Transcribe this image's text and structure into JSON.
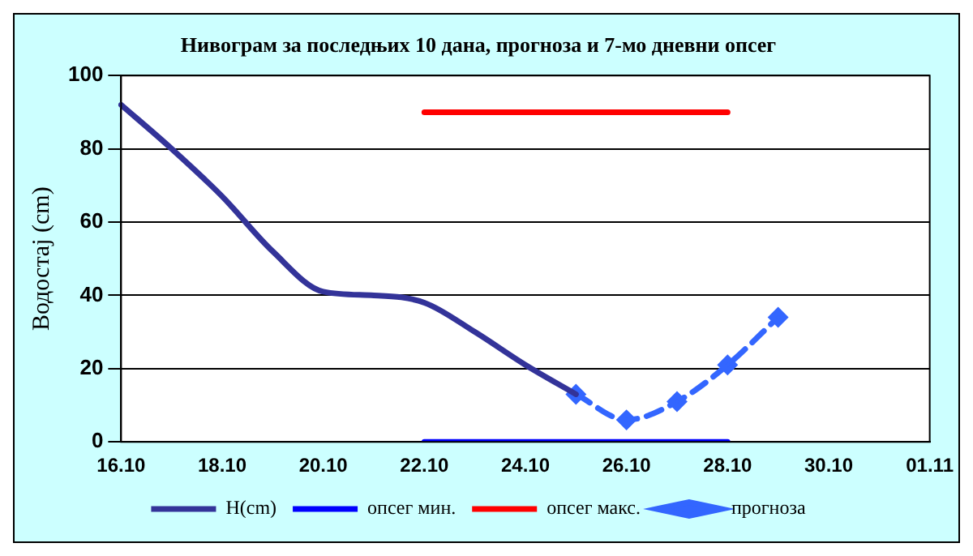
{
  "chart_data": {
    "type": "line",
    "title": "Нивограм за последњих 10 дана, прогноза и 7-мо дневни опсег",
    "ylabel": "Водостај (cm)",
    "categories": [
      "16.10",
      null,
      "18.10",
      null,
      "20.10",
      null,
      "22.10",
      null,
      "24.10",
      null,
      "26.10",
      null,
      "28.10",
      null,
      "30.10",
      null,
      "01.11"
    ],
    "series": [
      {
        "name": "H(cm)",
        "color": "#333399",
        "line_style": "solid",
        "marker": "none",
        "values": [
          92,
          80,
          67,
          52,
          41,
          40,
          38,
          30,
          21,
          13,
          null,
          null,
          null,
          null,
          null,
          null,
          null
        ]
      },
      {
        "name": "опсег мин.",
        "color": "#0000ff",
        "line_style": "solid",
        "marker": "none",
        "values": [
          null,
          null,
          null,
          null,
          null,
          null,
          0,
          0,
          0,
          0,
          0,
          0,
          0,
          null,
          null,
          null,
          null
        ]
      },
      {
        "name": "опсег макс.",
        "color": "#ff0000",
        "line_style": "solid",
        "marker": "none",
        "values": [
          null,
          null,
          null,
          null,
          null,
          null,
          90,
          90,
          90,
          90,
          90,
          90,
          90,
          null,
          null,
          null,
          null
        ]
      },
      {
        "name": "прогноза",
        "color": "#3366ff",
        "line_style": "dashed",
        "marker": "diamond",
        "values": [
          null,
          null,
          null,
          null,
          null,
          null,
          null,
          null,
          null,
          13,
          6,
          11,
          21,
          34,
          null,
          null,
          null
        ]
      }
    ],
    "ylim": [
      0,
      100
    ],
    "yticks": [
      0,
      20,
      40,
      60,
      80,
      100
    ],
    "grid": "y",
    "legend": "bottom"
  }
}
